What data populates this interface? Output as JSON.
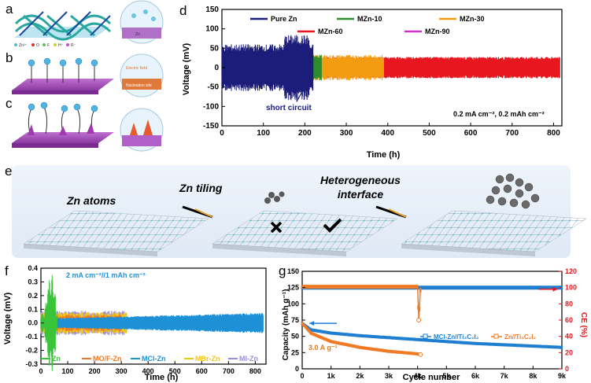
{
  "panels": {
    "a": "a",
    "b": "b",
    "c": "c",
    "d": "d",
    "e": "e",
    "f": "f",
    "g": "g"
  },
  "schem_labels": {
    "legend": [
      "Zn²⁺",
      "O",
      "F",
      "H⁺",
      "R⁻"
    ],
    "zn": "Zn",
    "electric": "Electric field",
    "nucleation": "Nucleation site"
  },
  "panel_e": {
    "zn_atoms": "Zn atoms",
    "zn_tiling": "Zn tiling",
    "hetero_1": "Heterogeneous",
    "hetero_2": "interface"
  },
  "chart_data": [
    {
      "id": "d",
      "type": "line",
      "xlabel": "Time (h)",
      "ylabel": "Voltage (mV)",
      "xlim": [
        0,
        820
      ],
      "ylim": [
        -150,
        150
      ],
      "xticks": [
        0,
        100,
        200,
        300,
        400,
        500,
        600,
        700,
        800
      ],
      "yticks": [
        -150,
        -100,
        -50,
        0,
        50,
        100,
        150
      ],
      "series": [
        {
          "name": "Pure Zn",
          "color": "#1c1c7a",
          "x_end": 220,
          "amp": 55
        },
        {
          "name": "MZn-10",
          "color": "#2e8b2e",
          "x_end": 240,
          "amp": 30
        },
        {
          "name": "MZn-30",
          "color": "#f39c12",
          "x_end": 390,
          "amp": 30
        },
        {
          "name": "MZn-60",
          "color": "#e8161e",
          "x_end": 815,
          "amp": 25
        },
        {
          "name": "MZn-90",
          "color": "#cc33cc",
          "x_end": 210,
          "amp": 22
        }
      ],
      "annotations": {
        "short": "short circuit",
        "cond": "0.2 mA cm⁻², 0.2 mAh cm⁻²"
      }
    },
    {
      "id": "f",
      "type": "line",
      "xlabel": "Time (h)",
      "ylabel": "Voltage (mV)",
      "xlim": [
        0,
        840
      ],
      "ylim": [
        -0.3,
        0.4
      ],
      "xticks": [
        0,
        100,
        200,
        300,
        400,
        500,
        600,
        700,
        800
      ],
      "yticks": [
        -0.3,
        -0.2,
        -0.1,
        0.0,
        0.1,
        0.2,
        0.3,
        0.4
      ],
      "series": [
        {
          "name": "Zn",
          "color": "#3ac43a",
          "x_end": 60,
          "amp": 0.33
        },
        {
          "name": "MO/F-Zn",
          "color": "#f07a24",
          "x_end": 300,
          "amp": 0.06
        },
        {
          "name": "MCl-Zn",
          "color": "#1e90d6",
          "x_end": 830,
          "amp": 0.07
        },
        {
          "name": "MBr-Zn",
          "color": "#f5c518",
          "x_end": 320,
          "amp": 0.08
        },
        {
          "name": "MI-Zn",
          "color": "#9a8fd8",
          "x_end": 320,
          "amp": 0.09
        }
      ],
      "annotations": {
        "cond": "2 mA cm⁻²//1 mAh cm⁻²"
      }
    },
    {
      "id": "g",
      "type": "scatter",
      "xlabel": "Cycle number",
      "ylabel": "Capacity (mAh g⁻¹)",
      "y2label": "CE (%)",
      "xlim": [
        0,
        9000
      ],
      "ylim": [
        0,
        150
      ],
      "y2lim": [
        0,
        120
      ],
      "xticks": [
        0,
        1000,
        2000,
        3000,
        4000,
        5000,
        6000,
        7000,
        8000,
        9000
      ],
      "xticklabels": [
        "0",
        "1k",
        "2k",
        "3k",
        "4k",
        "5k",
        "6k",
        "7k",
        "8k",
        "9k"
      ],
      "yticks": [
        0,
        25,
        50,
        75,
        100,
        125,
        150
      ],
      "y2ticks": [
        0,
        20,
        40,
        60,
        80,
        100,
        120
      ],
      "series": [
        {
          "name": "MCl-Zn//Ti₃C₂I₂",
          "color": "#1e7fd0",
          "capacity": {
            "x": [
              0,
              300,
              1000,
              2000,
              3000,
              4000,
              5000,
              6000,
              7000,
              8000,
              9000
            ],
            "y": [
              70,
              60,
              55,
              51,
              48,
              45,
              42,
              39,
              37,
              35,
              33
            ]
          },
          "ce": {
            "x": [
              0,
              9000
            ],
            "y": [
              100,
              100
            ]
          }
        },
        {
          "name": "Zn//Ti₃C₂I₂",
          "color": "#f07a24",
          "capacity": {
            "x": [
              0,
              300,
              1000,
              2000,
              3000,
              3500,
              4000,
              4100
            ],
            "y": [
              70,
              55,
              42,
              33,
              27,
              25,
              23,
              22
            ]
          },
          "ce": {
            "x": [
              0,
              4000,
              4040,
              4100
            ],
            "y": [
              101,
              101,
              60,
              100
            ]
          }
        }
      ],
      "annotations": {
        "rate": "3.0 A g⁻¹"
      }
    }
  ]
}
